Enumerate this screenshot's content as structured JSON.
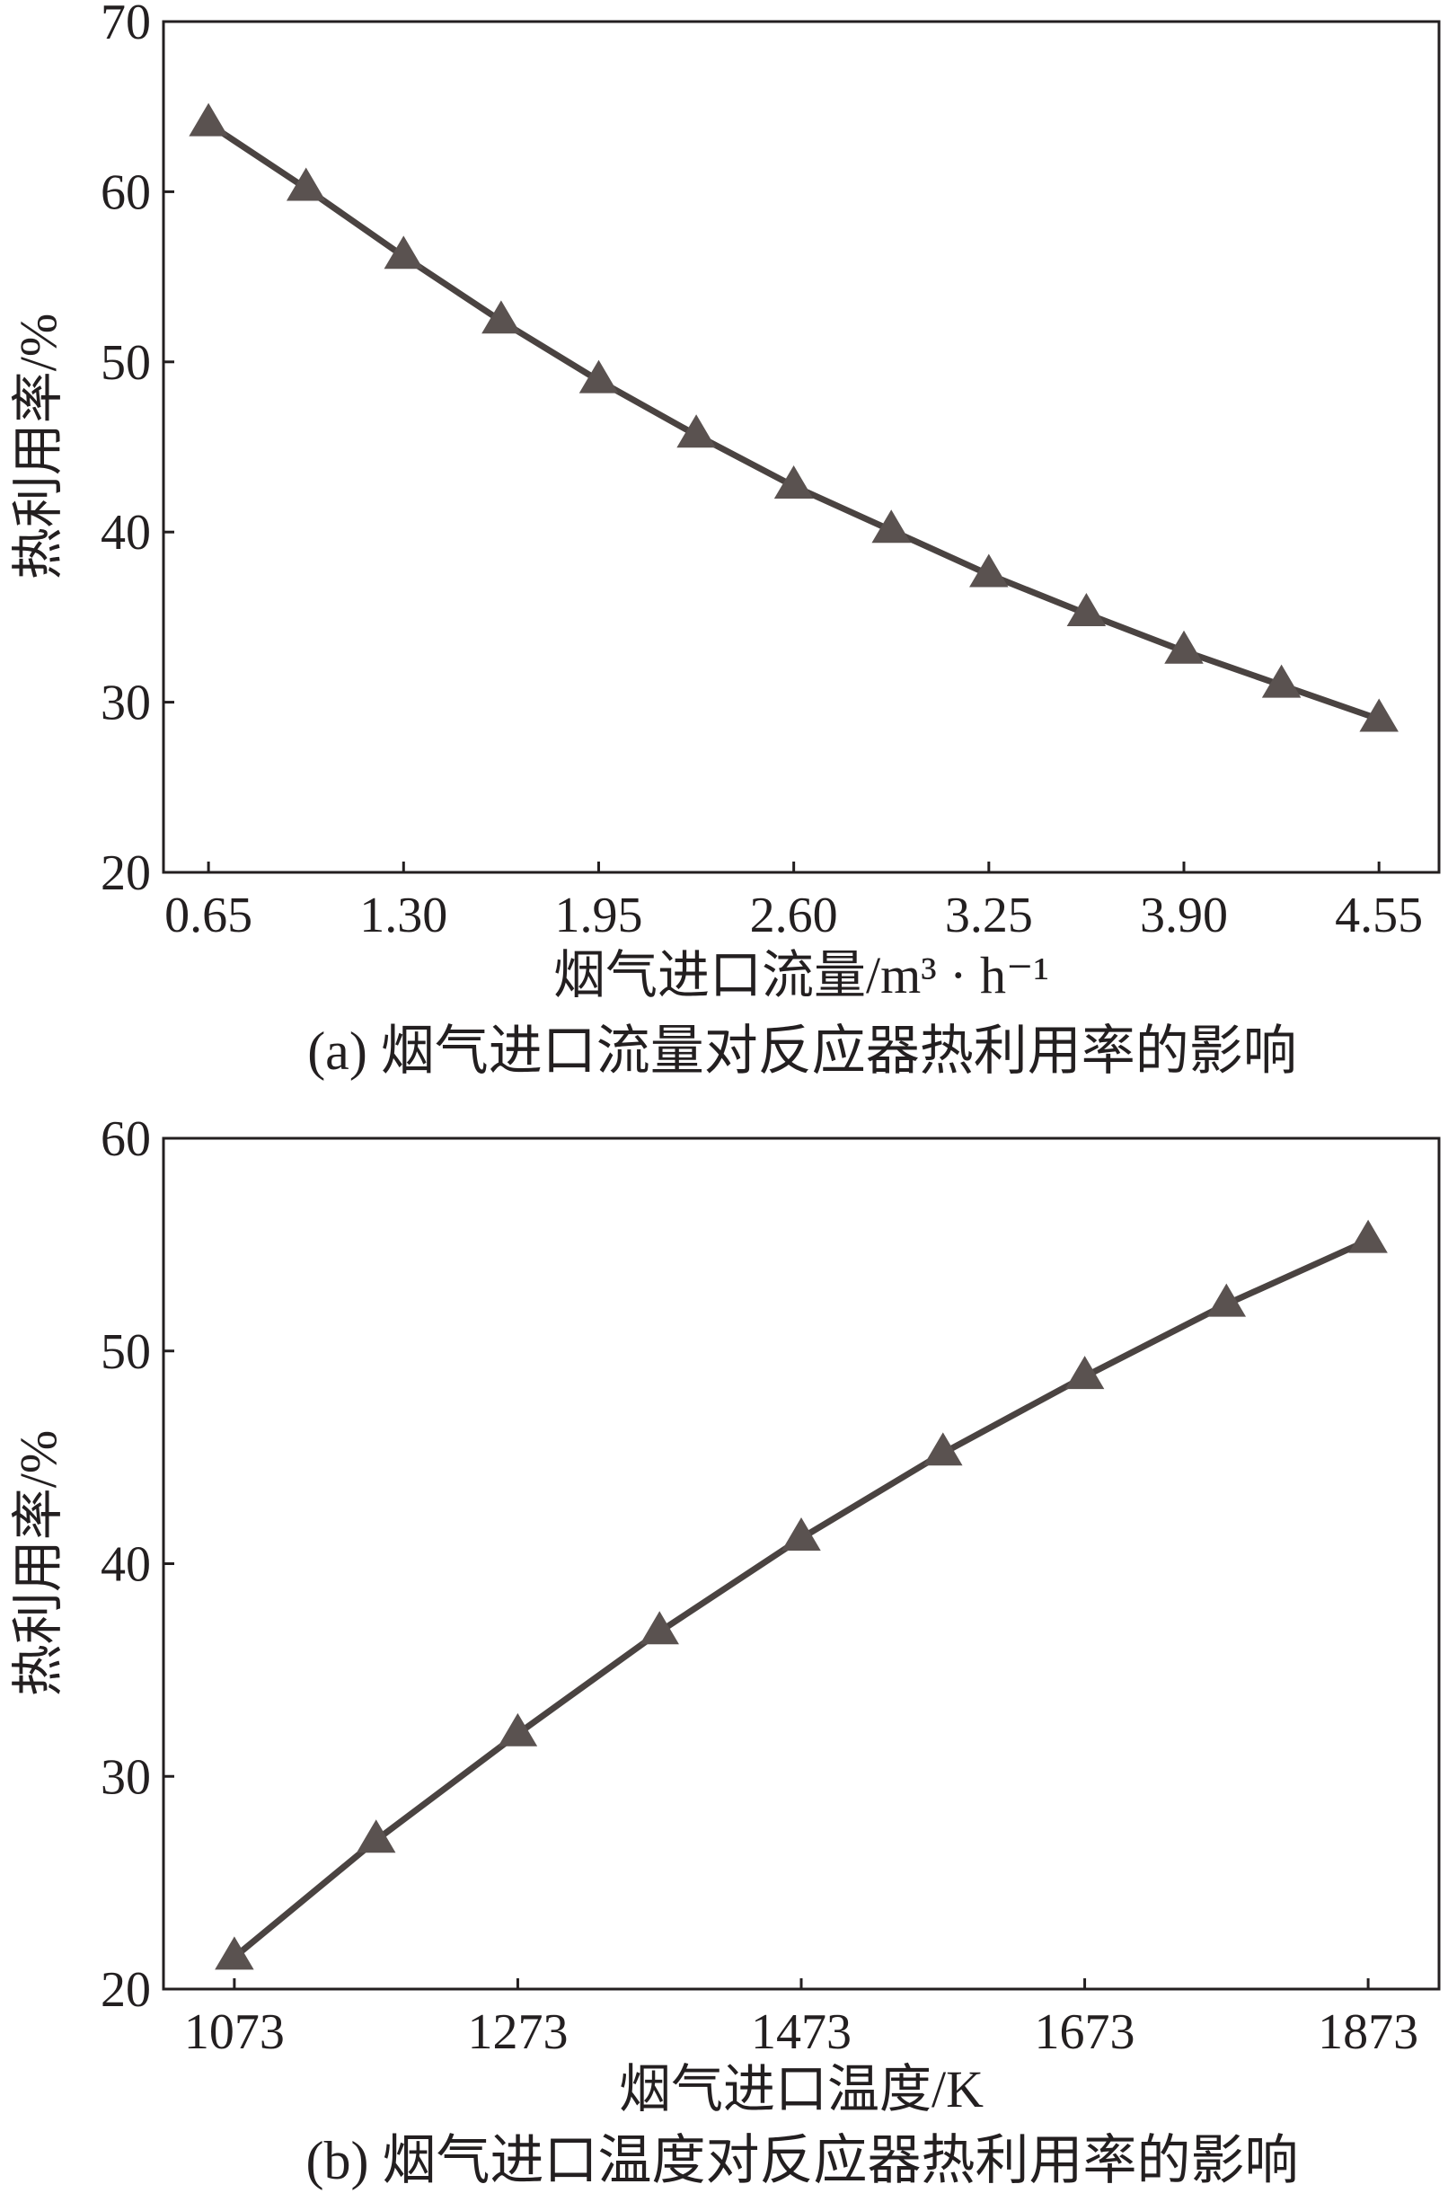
{
  "chart_data": [
    {
      "type": "line",
      "x": [
        0.65,
        0.975,
        1.3,
        1.625,
        1.95,
        2.275,
        2.6,
        2.925,
        3.25,
        3.575,
        3.9,
        4.225,
        4.55
      ],
      "series": [
        {
          "values": [
            64.0,
            60.2,
            56.2,
            52.4,
            48.9,
            45.7,
            42.7,
            40.1,
            37.5,
            35.2,
            33.0,
            31.0,
            29.0
          ]
        }
      ],
      "xticks": [
        0.65,
        1.3,
        1.95,
        2.6,
        3.25,
        3.9,
        4.55
      ],
      "xtick_labels": [
        "0.65",
        "1.30",
        "1.95",
        "2.60",
        "3.25",
        "3.90",
        "4.55"
      ],
      "yticks": [
        20,
        30,
        40,
        50,
        60,
        70
      ],
      "ytick_labels": [
        "20",
        "30",
        "40",
        "50",
        "60",
        "70"
      ],
      "xlim": [
        0.5,
        4.75
      ],
      "ylim": [
        20,
        70
      ],
      "xlabel": "烟气进口流量/m³ · h⁻¹",
      "ylabel": "热利用率/%",
      "caption": "(a) 烟气进口流量对反应器热利用率的影响",
      "marker": "triangle",
      "line_color": "#4a4341"
    },
    {
      "type": "line",
      "x": [
        1073,
        1173,
        1273,
        1373,
        1473,
        1573,
        1673,
        1773,
        1873
      ],
      "series": [
        {
          "values": [
            21.5,
            27.0,
            32.0,
            36.8,
            41.2,
            45.2,
            48.8,
            52.2,
            55.2
          ]
        }
      ],
      "xticks": [
        1073,
        1273,
        1473,
        1673,
        1873
      ],
      "xtick_labels": [
        "1073",
        "1273",
        "1473",
        "1673",
        "1873"
      ],
      "yticks": [
        20,
        30,
        40,
        50,
        60
      ],
      "ytick_labels": [
        "20",
        "30",
        "40",
        "50",
        "60"
      ],
      "xlim": [
        1023,
        1923
      ],
      "ylim": [
        20,
        60
      ],
      "xlabel": "烟气进口温度/K",
      "ylabel": "热利用率/%",
      "caption": "(b) 烟气进口温度对反应器热利用率的影响",
      "marker": "triangle",
      "line_color": "#4a4341"
    }
  ]
}
